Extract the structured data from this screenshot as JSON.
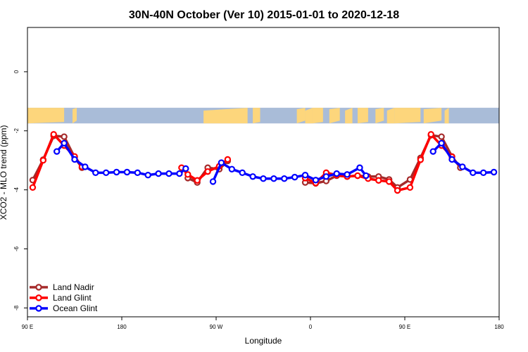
{
  "chart_data": {
    "type": "line",
    "title": "30N-40N October (Ver 10)   2015-01-01 to 2020-12-18",
    "xlabel": "Longitude",
    "ylabel": "XCO2 - MLO trend (ppm)",
    "xlim": [
      90,
      540
    ],
    "ylim": [
      -8.3,
      1.5
    ],
    "x_ticks": [
      {
        "value": 90,
        "label": "90 E"
      },
      {
        "value": 180,
        "label": "180"
      },
      {
        "value": 270,
        "label": "90 W"
      },
      {
        "value": 360,
        "label": "0"
      },
      {
        "value": 450,
        "label": "90 E"
      },
      {
        "value": 540,
        "label": "180"
      }
    ],
    "y_ticks": [
      {
        "value": 0,
        "label": "0"
      },
      {
        "value": -2,
        "label": "-2"
      },
      {
        "value": -4,
        "label": "-4"
      },
      {
        "value": -6,
        "label": "-6"
      },
      {
        "value": -8,
        "label": "-8"
      }
    ],
    "map_band": {
      "y_top": -1.22,
      "y_bottom": -1.75,
      "ocean_color": "#a9bcd8",
      "land_color": "#fdd67c"
    },
    "legend_position": "bottom-left",
    "grid": false,
    "series": [
      {
        "name": "Land Nadir",
        "color": "#a52a2a",
        "segments": [
          [
            [
              95,
              -3.67
            ],
            [
              105,
              -2.98
            ],
            [
              115,
              -2.17
            ],
            [
              125,
              -2.2
            ],
            [
              135,
              -2.9
            ],
            [
              142,
              -3.25
            ]
          ],
          [
            [
              243,
              -3.6
            ],
            [
              252,
              -3.75
            ],
            [
              262,
              -3.25
            ],
            [
              273,
              -3.3
            ],
            [
              281,
              -3.02
            ]
          ],
          [
            [
              355,
              -3.75
            ],
            [
              365,
              -3.78
            ],
            [
              375,
              -3.7
            ],
            [
              385,
              -3.52
            ],
            [
              395,
              -3.55
            ],
            [
              405,
              -3.52
            ],
            [
              415,
              -3.55
            ],
            [
              425,
              -3.55
            ],
            [
              435,
              -3.65
            ],
            [
              443,
              -3.92
            ],
            [
              455,
              -3.65
            ],
            [
              465,
              -2.92
            ],
            [
              475,
              -2.15
            ],
            [
              485,
              -2.2
            ],
            [
              495,
              -2.87
            ],
            [
              503,
              -3.25
            ]
          ]
        ]
      },
      {
        "name": "Land Glint",
        "color": "#ff0000",
        "segments": [
          [
            [
              95,
              -3.92
            ],
            [
              105,
              -3.0
            ],
            [
              115,
              -2.12
            ],
            [
              125,
              -2.5
            ],
            [
              135,
              -2.87
            ],
            [
              142,
              -3.22
            ]
          ],
          [
            [
              237,
              -3.25
            ],
            [
              243,
              -3.48
            ],
            [
              252,
              -3.68
            ],
            [
              262,
              -3.38
            ],
            [
              273,
              -3.2
            ],
            [
              281,
              -2.97
            ]
          ],
          [
            [
              355,
              -3.6
            ],
            [
              365,
              -3.77
            ],
            [
              375,
              -3.42
            ],
            [
              385,
              -3.5
            ],
            [
              395,
              -3.55
            ],
            [
              405,
              -3.52
            ],
            [
              415,
              -3.62
            ],
            [
              425,
              -3.68
            ],
            [
              435,
              -3.72
            ],
            [
              443,
              -4.02
            ],
            [
              455,
              -3.92
            ],
            [
              465,
              -2.98
            ],
            [
              475,
              -2.12
            ],
            [
              485,
              -2.5
            ],
            [
              495,
              -2.88
            ]
          ]
        ]
      },
      {
        "name": "Ocean Glint",
        "color": "#0000ff",
        "segments": [
          [
            [
              118,
              -2.7
            ],
            [
              125,
              -2.42
            ],
            [
              135,
              -2.97
            ],
            [
              145,
              -3.22
            ],
            [
              155,
              -3.42
            ],
            [
              165,
              -3.42
            ],
            [
              175,
              -3.4
            ],
            [
              185,
              -3.4
            ],
            [
              195,
              -3.42
            ],
            [
              205,
              -3.5
            ],
            [
              215,
              -3.45
            ],
            [
              225,
              -3.45
            ],
            [
              235,
              -3.45
            ],
            [
              241,
              -3.28
            ]
          ],
          [
            [
              267,
              -3.72
            ],
            [
              275,
              -3.08
            ],
            [
              285,
              -3.3
            ],
            [
              295,
              -3.42
            ],
            [
              305,
              -3.55
            ],
            [
              315,
              -3.62
            ],
            [
              325,
              -3.62
            ],
            [
              335,
              -3.62
            ],
            [
              345,
              -3.57
            ],
            [
              355,
              -3.5
            ],
            [
              365,
              -3.67
            ],
            [
              375,
              -3.55
            ],
            [
              385,
              -3.45
            ],
            [
              395,
              -3.48
            ],
            [
              407,
              -3.25
            ],
            [
              413,
              -3.52
            ]
          ],
          [
            [
              477,
              -2.7
            ],
            [
              485,
              -2.42
            ],
            [
              495,
              -2.97
            ],
            [
              505,
              -3.22
            ],
            [
              515,
              -3.42
            ],
            [
              525,
              -3.42
            ],
            [
              535,
              -3.4
            ]
          ]
        ]
      }
    ]
  }
}
